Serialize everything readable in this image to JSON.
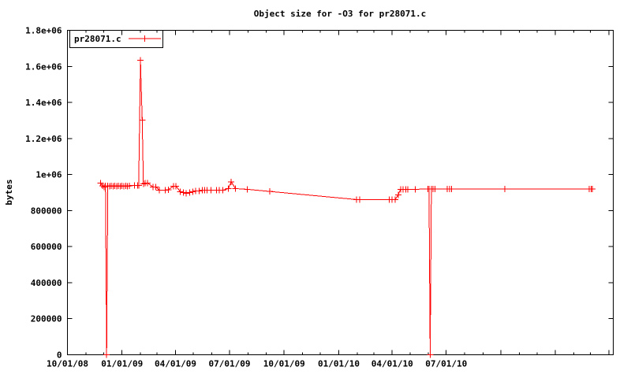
{
  "window": {
    "background": "#ffffff"
  },
  "colors": {
    "series": "#ff0000",
    "axis": "#000000",
    "background": "#ffffff",
    "text": "#000000"
  },
  "legend": {
    "label": "pr28071.c",
    "marker": "plus-marker",
    "color": "#ff0000"
  },
  "chart_data": {
    "type": "line",
    "title": "Object size for -O3 for pr28071.c",
    "xlabel": "",
    "ylabel": "bytes",
    "grid": false,
    "legend_position": "top-left-inside-box",
    "ylim": [
      0,
      1800000
    ],
    "xlim": [
      "2008-10-01",
      "2011-04-06"
    ],
    "y_ticks": [
      {
        "value": 0,
        "label": "0"
      },
      {
        "value": 200000,
        "label": "200000"
      },
      {
        "value": 400000,
        "label": "400000"
      },
      {
        "value": 600000,
        "label": "600000"
      },
      {
        "value": 800000,
        "label": "800000"
      },
      {
        "value": 1000000,
        "label": "1e+06"
      },
      {
        "value": 1200000,
        "label": "1.2e+06"
      },
      {
        "value": 1400000,
        "label": "1.4e+06"
      },
      {
        "value": 1600000,
        "label": "1.6e+06"
      },
      {
        "value": 1800000,
        "label": "1.8e+06"
      }
    ],
    "x_ticks": [
      {
        "date": "2008-10-01",
        "label": "10/01/08"
      },
      {
        "date": "2009-01-01",
        "label": "01/01/09"
      },
      {
        "date": "2009-04-01",
        "label": "04/01/09"
      },
      {
        "date": "2009-07-01",
        "label": "07/01/09"
      },
      {
        "date": "2009-10-01",
        "label": "10/01/09"
      },
      {
        "date": "2010-01-01",
        "label": "01/01/10"
      },
      {
        "date": "2010-04-01",
        "label": "04/01/10"
      },
      {
        "date": "2010-07-01",
        "label": "07/01/10"
      }
    ],
    "x_major_unlabeled": [
      "2010-10-01",
      "2011-01-01",
      "2011-04-01"
    ],
    "x_minor_unit": "month",
    "series": [
      {
        "name": "pr28071.c",
        "color": "#ff0000",
        "marker": "plus",
        "points": [
          [
            "2008-11-26",
            952000
          ],
          [
            "2008-11-29",
            938000
          ],
          [
            "2008-12-02",
            930000
          ],
          [
            "2008-12-04",
            938000
          ],
          [
            "2008-12-06",
            0
          ],
          [
            "2008-12-08",
            938000
          ],
          [
            "2008-12-11",
            935000
          ],
          [
            "2008-12-14",
            938000
          ],
          [
            "2008-12-17",
            935000
          ],
          [
            "2008-12-20",
            938000
          ],
          [
            "2008-12-23",
            935000
          ],
          [
            "2008-12-26",
            938000
          ],
          [
            "2008-12-29",
            935000
          ],
          [
            "2009-01-01",
            938000
          ],
          [
            "2009-01-04",
            935000
          ],
          [
            "2009-01-07",
            938000
          ],
          [
            "2009-01-10",
            935000
          ],
          [
            "2009-01-13",
            938000
          ],
          [
            "2009-01-22",
            940000
          ],
          [
            "2009-01-27",
            940000
          ],
          [
            "2009-01-29",
            940000
          ],
          [
            "2009-02-01",
            1634000
          ],
          [
            "2009-02-04",
            1302000
          ],
          [
            "2009-02-06",
            948000
          ],
          [
            "2009-02-09",
            953000
          ],
          [
            "2009-02-13",
            953000
          ],
          [
            "2009-02-22",
            931000
          ],
          [
            "2009-02-27",
            931000
          ],
          [
            "2009-03-05",
            913000
          ],
          [
            "2009-03-15",
            913000
          ],
          [
            "2009-03-20",
            916000
          ],
          [
            "2009-03-29",
            936000
          ],
          [
            "2009-04-02",
            936000
          ],
          [
            "2009-04-09",
            905000
          ],
          [
            "2009-04-14",
            900000
          ],
          [
            "2009-04-19",
            896000
          ],
          [
            "2009-04-25",
            900000
          ],
          [
            "2009-04-30",
            905000
          ],
          [
            "2009-05-05",
            909000
          ],
          [
            "2009-05-11",
            909000
          ],
          [
            "2009-05-16",
            913000
          ],
          [
            "2009-05-20",
            913000
          ],
          [
            "2009-05-24",
            913000
          ],
          [
            "2009-05-31",
            913000
          ],
          [
            "2009-06-09",
            913000
          ],
          [
            "2009-06-14",
            913000
          ],
          [
            "2009-06-20",
            913000
          ],
          [
            "2009-06-29",
            922000
          ],
          [
            "2009-07-04",
            960000
          ],
          [
            "2009-07-11",
            922000
          ],
          [
            "2009-07-31",
            918000
          ],
          [
            "2009-09-07",
            906000
          ],
          [
            "2010-01-31",
            861000
          ],
          [
            "2010-02-05",
            861000
          ],
          [
            "2010-03-27",
            861000
          ],
          [
            "2010-04-01",
            861000
          ],
          [
            "2010-04-06",
            861000
          ],
          [
            "2010-04-11",
            887000
          ],
          [
            "2010-04-15",
            918000
          ],
          [
            "2010-04-19",
            918000
          ],
          [
            "2010-04-24",
            918000
          ],
          [
            "2010-04-27",
            918000
          ],
          [
            "2010-05-10",
            918000
          ],
          [
            "2010-05-31",
            920000
          ],
          [
            "2010-06-02",
            920000
          ],
          [
            "2010-06-04",
            0
          ],
          [
            "2010-06-06",
            920000
          ],
          [
            "2010-06-09",
            920000
          ],
          [
            "2010-06-12",
            920000
          ],
          [
            "2010-07-03",
            920000
          ],
          [
            "2010-07-07",
            920000
          ],
          [
            "2010-07-10",
            920000
          ],
          [
            "2010-10-08",
            920000
          ],
          [
            "2011-02-27",
            920000
          ],
          [
            "2011-03-02",
            920000
          ],
          [
            "2011-03-04",
            920000
          ]
        ]
      }
    ]
  }
}
